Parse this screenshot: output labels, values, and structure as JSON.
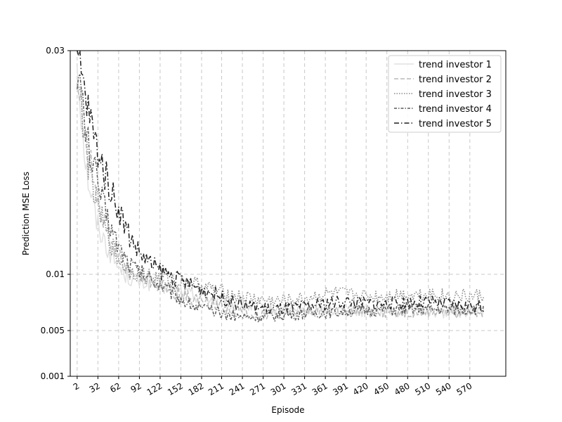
{
  "chart_data": {
    "type": "line",
    "title": "",
    "xlabel": "Episode",
    "ylabel": "Prediction MSE Loss",
    "x_tick_labels": [
      "2",
      "32",
      "62",
      "92",
      "122",
      "152",
      "182",
      "211",
      "241",
      "271",
      "301",
      "331",
      "361",
      "391",
      "420",
      "450",
      "480",
      "510",
      "540",
      "570"
    ],
    "y_tick_labels": [
      "0.001",
      "0.005",
      "0.01",
      "0.03"
    ],
    "y_tick_values": [
      0.001,
      0.005,
      0.01,
      0.03
    ],
    "xlim": [
      -8,
      622
    ],
    "grid": true,
    "legend_position": "top-right",
    "series": [
      {
        "name": "trend investor 1",
        "color": "#e0e0e0",
        "dash": "solid",
        "x": [
          2,
          15,
          30,
          45,
          60,
          75,
          90,
          110,
          130,
          150,
          170,
          190,
          210,
          230,
          250,
          270,
          290,
          310,
          330,
          350,
          370,
          390,
          410,
          430,
          450,
          470,
          490,
          510,
          530,
          550,
          570,
          590
        ],
        "y": [
          0.029,
          0.0195,
          0.0147,
          0.0125,
          0.0108,
          0.0098,
          0.0093,
          0.0092,
          0.0088,
          0.0085,
          0.0082,
          0.0079,
          0.0077,
          0.0073,
          0.0071,
          0.0069,
          0.0068,
          0.0068,
          0.0068,
          0.0068,
          0.0069,
          0.0068,
          0.0067,
          0.0068,
          0.0067,
          0.0067,
          0.0067,
          0.0068,
          0.0066,
          0.0067,
          0.0067,
          0.0068
        ]
      },
      {
        "name": "trend investor 2",
        "color": "#b8b8b8",
        "dash": "dashed",
        "x": [
          2,
          15,
          30,
          45,
          60,
          75,
          90,
          110,
          130,
          150,
          170,
          190,
          210,
          230,
          250,
          270,
          290,
          310,
          330,
          350,
          370,
          390,
          410,
          430,
          450,
          470,
          490,
          510,
          530,
          550,
          570,
          590
        ],
        "y": [
          0.028,
          0.0215,
          0.0175,
          0.014,
          0.0118,
          0.0103,
          0.0098,
          0.0093,
          0.0088,
          0.0082,
          0.0078,
          0.0075,
          0.0072,
          0.0068,
          0.0066,
          0.0065,
          0.0065,
          0.0066,
          0.0067,
          0.0068,
          0.0068,
          0.0067,
          0.0067,
          0.0067,
          0.0066,
          0.0066,
          0.0066,
          0.0067,
          0.0067,
          0.0066,
          0.0067,
          0.0067
        ]
      },
      {
        "name": "trend investor 3",
        "color": "#8a8a8a",
        "dash": "dotted",
        "x": [
          2,
          15,
          30,
          45,
          60,
          75,
          90,
          110,
          130,
          150,
          170,
          190,
          210,
          230,
          250,
          270,
          290,
          310,
          330,
          350,
          370,
          390,
          410,
          430,
          450,
          470,
          490,
          510,
          530,
          550,
          570,
          590
        ],
        "y": [
          0.0285,
          0.021,
          0.0165,
          0.0135,
          0.0115,
          0.0105,
          0.0101,
          0.0098,
          0.0096,
          0.0094,
          0.0092,
          0.0088,
          0.0085,
          0.0081,
          0.0079,
          0.0077,
          0.0076,
          0.0077,
          0.0078,
          0.0081,
          0.0083,
          0.0082,
          0.0081,
          0.008,
          0.0081,
          0.0082,
          0.0082,
          0.0083,
          0.0081,
          0.0081,
          0.008,
          0.0081
        ]
      },
      {
        "name": "trend investor 4",
        "color": "#5a5a5a",
        "dash": "dashdot-short",
        "x": [
          2,
          15,
          30,
          45,
          60,
          75,
          90,
          110,
          130,
          150,
          170,
          190,
          210,
          230,
          250,
          270,
          290,
          310,
          330,
          350,
          370,
          390,
          410,
          430,
          450,
          470,
          490,
          510,
          530,
          550,
          570,
          590
        ],
        "y": [
          0.0288,
          0.0225,
          0.0185,
          0.0152,
          0.0128,
          0.0112,
          0.0103,
          0.0096,
          0.0088,
          0.0079,
          0.0072,
          0.0068,
          0.0065,
          0.0063,
          0.0062,
          0.0062,
          0.0063,
          0.0064,
          0.0065,
          0.0066,
          0.0066,
          0.0067,
          0.0068,
          0.0068,
          0.0069,
          0.0069,
          0.0069,
          0.0069,
          0.0069,
          0.0069,
          0.0069,
          0.007
        ]
      },
      {
        "name": "trend investor 5",
        "color": "#1e1e1e",
        "dash": "dashdot",
        "x": [
          2,
          15,
          30,
          45,
          60,
          75,
          90,
          110,
          130,
          150,
          170,
          190,
          210,
          230,
          250,
          270,
          290,
          310,
          330,
          350,
          370,
          390,
          410,
          430,
          450,
          470,
          490,
          510,
          530,
          550,
          570,
          590
        ],
        "y": [
          0.03,
          0.0255,
          0.0215,
          0.0185,
          0.0162,
          0.0138,
          0.0121,
          0.0108,
          0.0101,
          0.0095,
          0.009,
          0.0085,
          0.008,
          0.0075,
          0.0072,
          0.007,
          0.0069,
          0.007,
          0.0071,
          0.0073,
          0.0075,
          0.0076,
          0.0075,
          0.0074,
          0.0074,
          0.0075,
          0.0075,
          0.0075,
          0.0074,
          0.0073,
          0.0072,
          0.0071
        ]
      }
    ]
  }
}
